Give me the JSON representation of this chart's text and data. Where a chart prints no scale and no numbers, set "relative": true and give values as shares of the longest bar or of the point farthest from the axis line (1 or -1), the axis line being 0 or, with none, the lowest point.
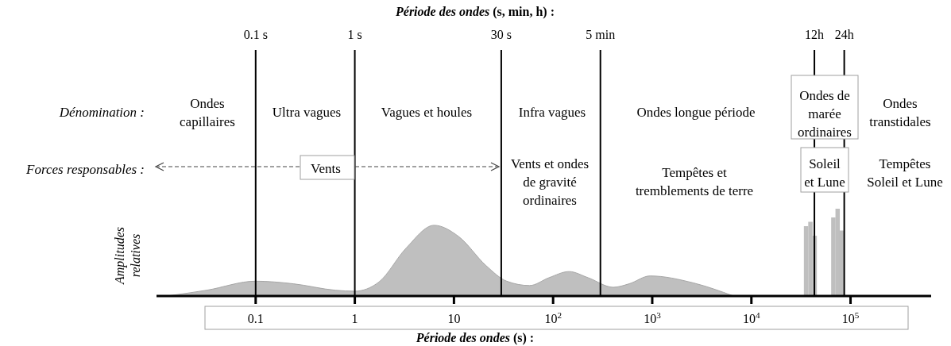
{
  "chart_data": {
    "type": "area",
    "relative": true,
    "log": "x",
    "xlim": [
      0.01,
      650000
    ],
    "xticks": [
      0.1,
      1,
      10,
      {
        "value": 100,
        "label": "10$^{2}$"
      },
      {
        "value": 1000,
        "label": "10$^{3}$"
      },
      {
        "value": 10000,
        "label": "10$^{4}$"
      },
      {
        "value": 100000,
        "label": "10$^{5}$"
      }
    ],
    "xlabel": "Période des ondes (s) :",
    "x2label": "Période des ondes (s, min, h) :",
    "ylabel": "Amplitudes relatives",
    "series": [
      {
        "color": "#bfbfbf",
        "x": [
          0.0127,
          0.032,
          0.1,
          0.24,
          0.64,
          1,
          1.75,
          3.3,
          6.3,
          11.2,
          21,
          34,
          58,
          91,
          145,
          225,
          405,
          585,
          950,
          2600,
          6600
        ],
        "values": [
          0,
          0.066,
          0.17,
          0.14,
          0.066,
          0.055,
          0.16,
          0.55,
          0.81,
          0.68,
          0.35,
          0.17,
          0.12,
          0.21,
          0.28,
          0.21,
          0.1,
          0.14,
          0.23,
          0.15,
          0
        ]
      },
      {
        "type": "bar",
        "color": "#bfbfbf",
        "x": [
          35600,
          39400,
          43500,
          67100,
          74100,
          81100
        ],
        "values": [
          0.8,
          0.85,
          0.69,
          0.9,
          1,
          0.75
        ]
      }
    ],
    "ref_lines": [
      {
        "axis": "x",
        "value": 0.1,
        "label": "0.1 s"
      },
      {
        "axis": "x",
        "value": 1,
        "label": "1 s"
      },
      {
        "axis": "x",
        "value": 30,
        "label": "30 s"
      },
      {
        "axis": "x",
        "value": 300,
        "label": "5 min"
      },
      {
        "axis": "x",
        "value": 43200,
        "label": "12h"
      },
      {
        "axis": "x",
        "value": 86400,
        "label": "24h"
      }
    ],
    "annotations": [
      "Dénomination :",
      "Forces responsables :",
      "Ondes\ncapillaires",
      "Ultra vagues",
      "Vagues et houles",
      "Infra vagues",
      "Ondes longue période",
      "Ondes de\nmarée\nordinaires",
      "Ondes\ntranstidales",
      "Vents",
      "Vents et ondes\nde gravité\nordinaires",
      "Tempêtes et\ntremblements de terre",
      "Soleil\net Lune",
      "Tempêtes\nSoleil et Lune"
    ]
  }
}
